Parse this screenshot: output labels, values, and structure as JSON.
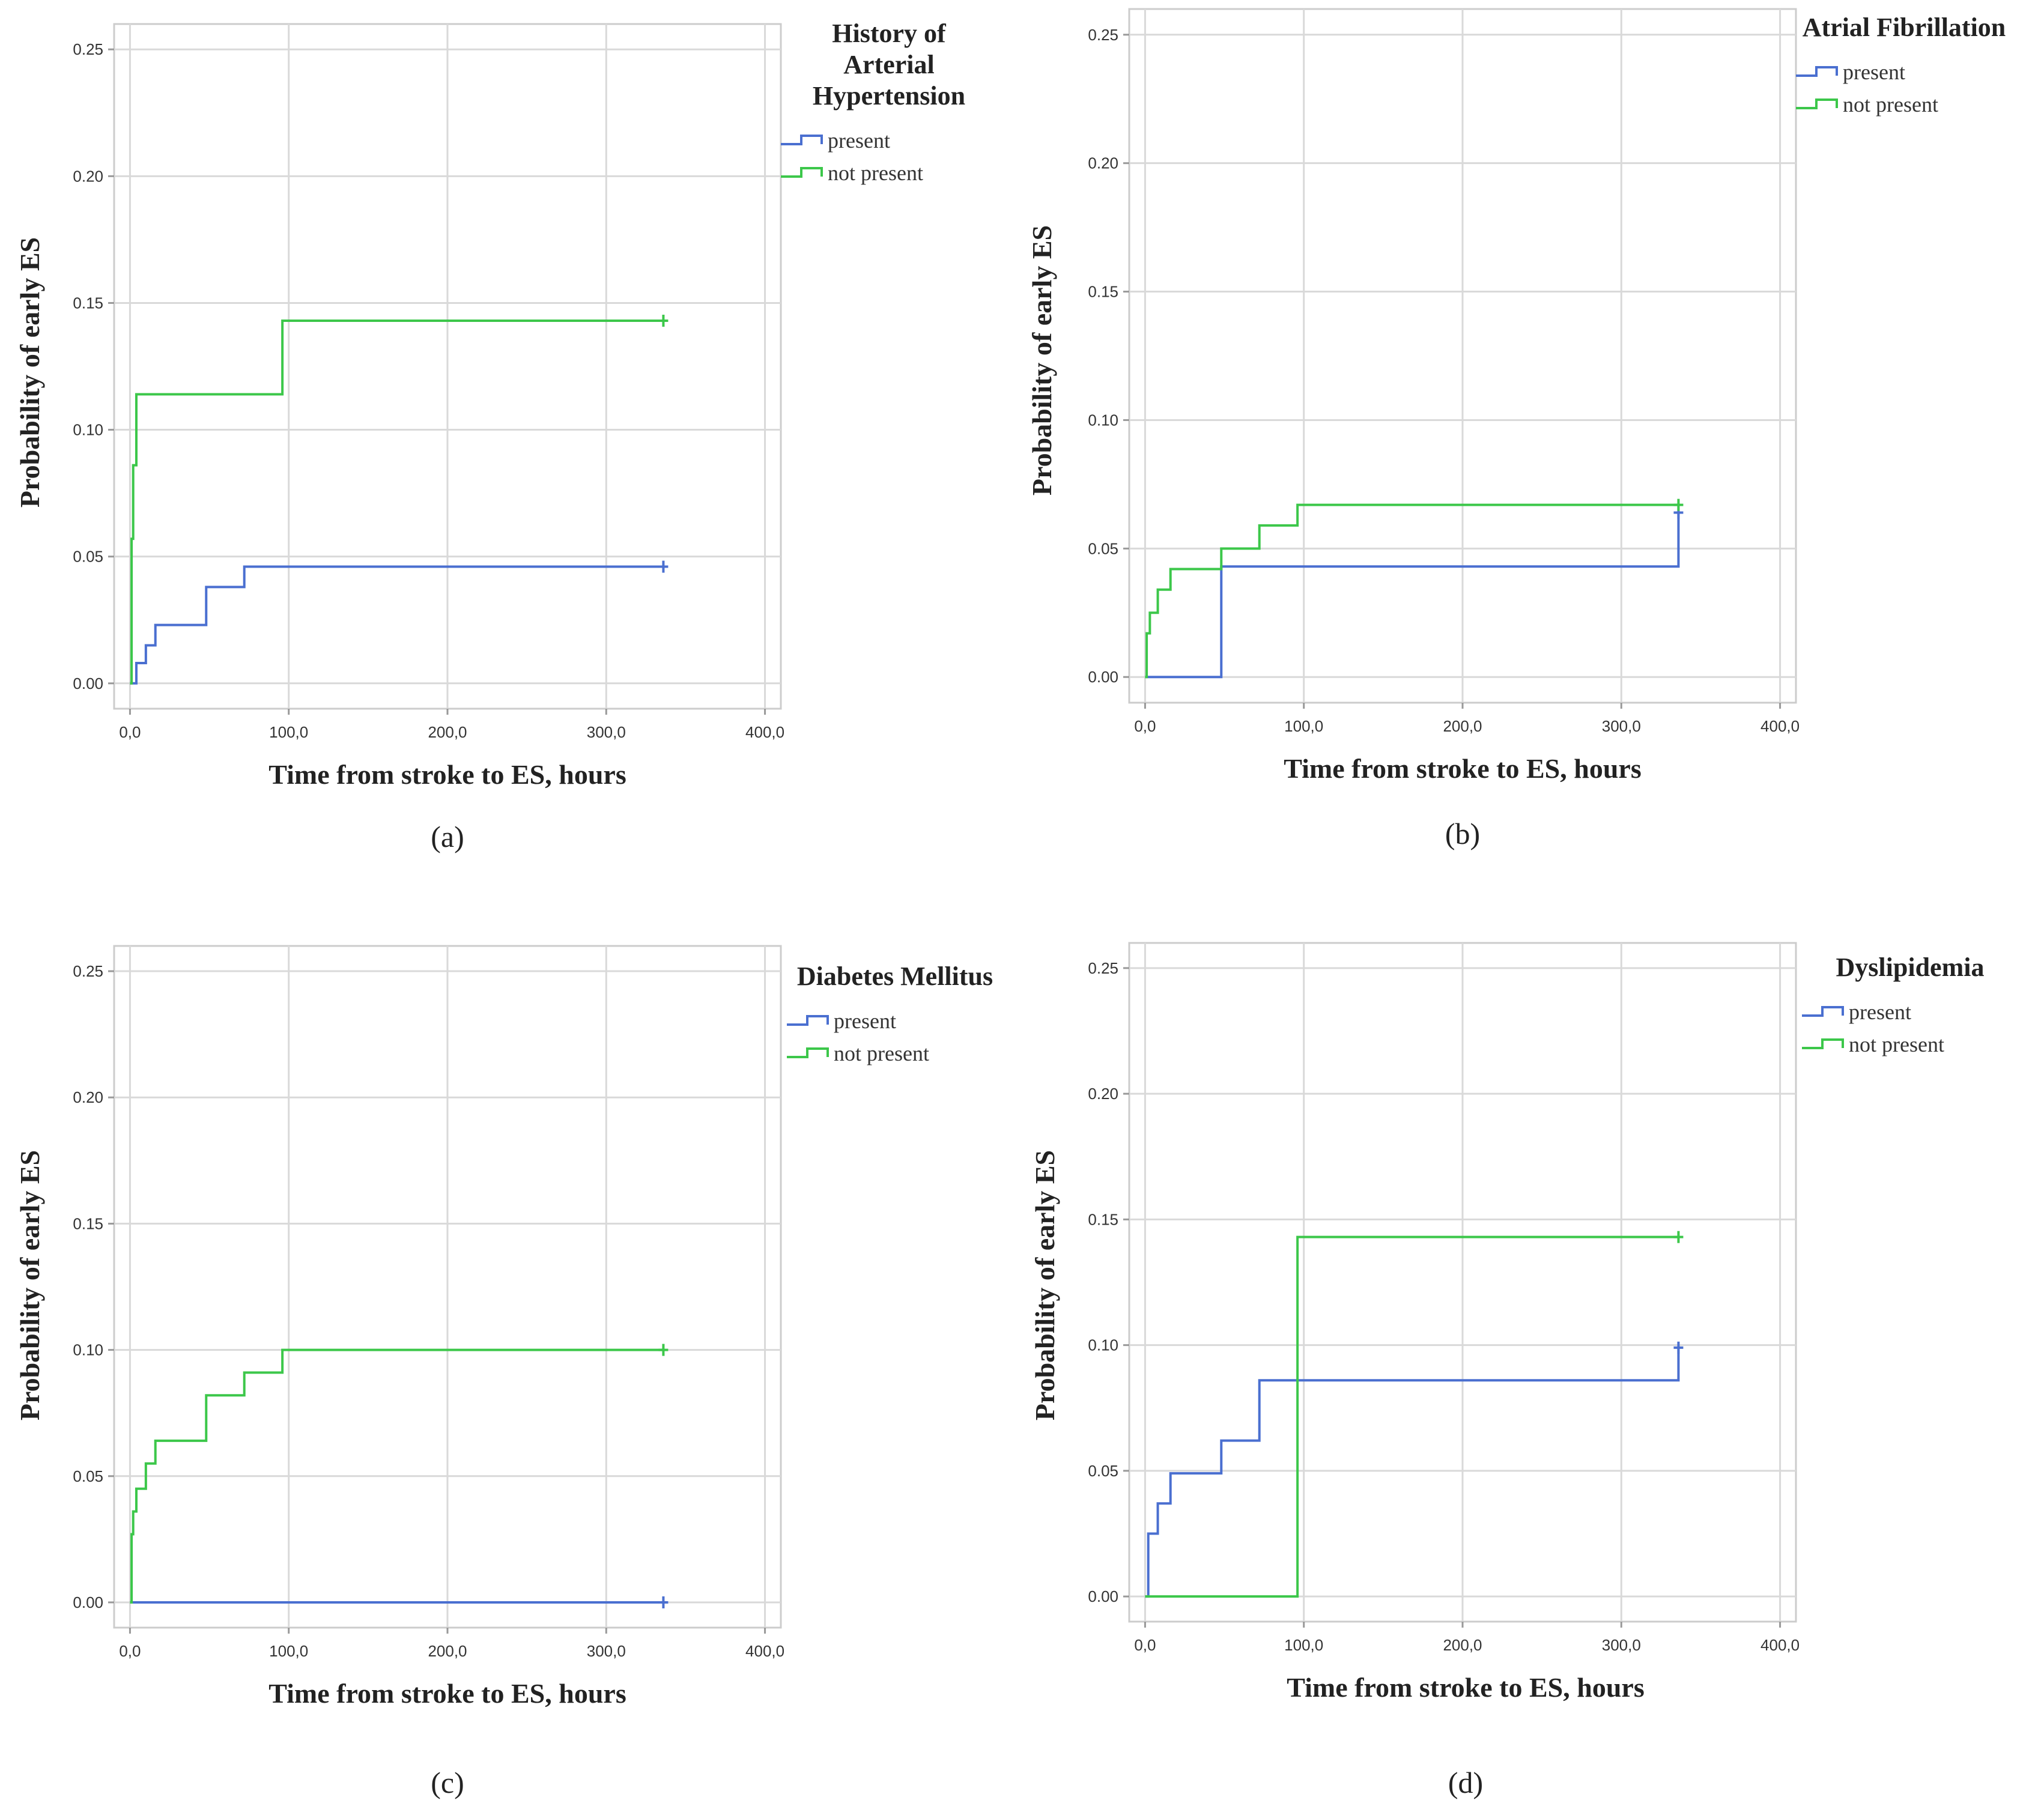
{
  "colors": {
    "present": "#4a6fd0",
    "not_present": "#3cc74a",
    "grid": "#d9d9d9",
    "frame": "#cccccc"
  },
  "chart_data": [
    {
      "type": "line",
      "panel_label": "(a)",
      "legend_title": [
        "History of",
        "Arterial",
        "Hypertension"
      ],
      "xlabel": "Time from stroke to ES, hours",
      "ylabel": "Probability of early ES",
      "xlim": [
        -10,
        410
      ],
      "ylim": [
        -0.01,
        0.26
      ],
      "xticks": [
        0,
        100,
        200,
        300,
        400
      ],
      "xtick_labels": [
        "0,0",
        "100,0",
        "200,0",
        "300,0",
        "400,0"
      ],
      "yticks": [
        0,
        0.05,
        0.1,
        0.15,
        0.2,
        0.25
      ],
      "ytick_labels": [
        "0.00",
        "0.05",
        "0.10",
        "0.15",
        "0.20",
        "0.25"
      ],
      "series": [
        {
          "name": "present",
          "color_key": "present",
          "x": [
            0,
            4,
            10,
            16,
            48,
            72,
            336
          ],
          "y": [
            0,
            0.008,
            0.015,
            0.023,
            0.038,
            0.046,
            0.046
          ]
        },
        {
          "name": "not present",
          "color_key": "not_present",
          "x": [
            0,
            1,
            2,
            4,
            96,
            336
          ],
          "y": [
            0,
            0.057,
            0.086,
            0.114,
            0.143,
            0.143
          ]
        }
      ]
    },
    {
      "type": "line",
      "panel_label": "(b)",
      "legend_title": [
        "Atrial Fibrillation"
      ],
      "xlabel": "Time from stroke to ES, hours",
      "ylabel": "Probability of early ES",
      "xlim": [
        -10,
        410
      ],
      "ylim": [
        -0.01,
        0.26
      ],
      "xticks": [
        0,
        100,
        200,
        300,
        400
      ],
      "xtick_labels": [
        "0,0",
        "100,0",
        "200,0",
        "300,0",
        "400,0"
      ],
      "yticks": [
        0,
        0.05,
        0.1,
        0.15,
        0.2,
        0.25
      ],
      "ytick_labels": [
        "0.00",
        "0.05",
        "0.10",
        "0.15",
        "0.20",
        "0.25"
      ],
      "series": [
        {
          "name": "present",
          "color_key": "present",
          "x": [
            0,
            48,
            336
          ],
          "y": [
            0,
            0.043,
            0.064
          ]
        },
        {
          "name": "not present",
          "color_key": "not_present",
          "x": [
            0,
            1,
            3,
            8,
            16,
            48,
            72,
            96,
            336
          ],
          "y": [
            0,
            0.017,
            0.025,
            0.034,
            0.042,
            0.05,
            0.059,
            0.067,
            0.067
          ]
        }
      ]
    },
    {
      "type": "line",
      "panel_label": "(c)",
      "legend_title": [
        "Diabetes Mellitus"
      ],
      "xlabel": "Time from stroke to ES, hours",
      "ylabel": "Probability of early ES",
      "xlim": [
        -10,
        410
      ],
      "ylim": [
        -0.01,
        0.26
      ],
      "xticks": [
        0,
        100,
        200,
        300,
        400
      ],
      "xtick_labels": [
        "0,0",
        "100,0",
        "200,0",
        "300,0",
        "400,0"
      ],
      "yticks": [
        0,
        0.05,
        0.1,
        0.15,
        0.2,
        0.25
      ],
      "ytick_labels": [
        "0.00",
        "0.05",
        "0.10",
        "0.15",
        "0.20",
        "0.25"
      ],
      "series": [
        {
          "name": "present",
          "color_key": "present",
          "x": [
            0,
            336
          ],
          "y": [
            0,
            0
          ]
        },
        {
          "name": "not present",
          "color_key": "not_present",
          "x": [
            0,
            1,
            2,
            4,
            10,
            16,
            48,
            72,
            96,
            336
          ],
          "y": [
            0,
            0.027,
            0.036,
            0.045,
            0.055,
            0.064,
            0.082,
            0.091,
            0.1,
            0.1
          ]
        }
      ]
    },
    {
      "type": "line",
      "panel_label": "(d)",
      "legend_title": [
        "Dyslipidemia"
      ],
      "xlabel": "Time from stroke to ES, hours",
      "ylabel": "Probability of early ES",
      "xlim": [
        -10,
        410
      ],
      "ylim": [
        -0.01,
        0.26
      ],
      "xticks": [
        0,
        100,
        200,
        300,
        400
      ],
      "xtick_labels": [
        "0,0",
        "100,0",
        "200,0",
        "300,0",
        "400,0"
      ],
      "yticks": [
        0,
        0.05,
        0.1,
        0.15,
        0.2,
        0.25
      ],
      "ytick_labels": [
        "0.00",
        "0.05",
        "0.10",
        "0.15",
        "0.20",
        "0.25"
      ],
      "series": [
        {
          "name": "present",
          "color_key": "present",
          "x": [
            0,
            2,
            8,
            16,
            48,
            72,
            336
          ],
          "y": [
            0,
            0.025,
            0.037,
            0.049,
            0.062,
            0.086,
            0.099
          ]
        },
        {
          "name": "not present",
          "color_key": "not_present",
          "x": [
            0,
            96,
            336
          ],
          "y": [
            0,
            0.143,
            0.143
          ]
        }
      ]
    }
  ]
}
